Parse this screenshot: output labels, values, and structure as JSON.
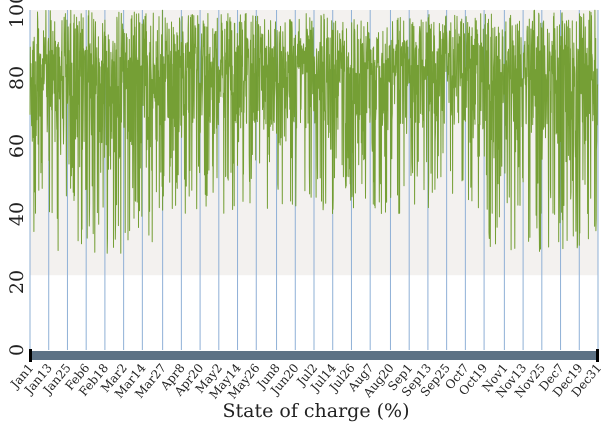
{
  "chart_data": {
    "type": "line",
    "title": "",
    "xlabel": "State of charge (%)",
    "ylabel": "",
    "ylim": [
      0,
      100
    ],
    "yticks": [
      0,
      20,
      40,
      60,
      80,
      100
    ],
    "xlim": [
      1,
      365
    ],
    "x_tick_labels": [
      "Jan1",
      "Jan13",
      "Jan25",
      "Feb6",
      "Feb18",
      "Mar2",
      "Mar14",
      "Mar27",
      "Apr8",
      "Apr20",
      "May2",
      "May14",
      "May26",
      "Jun8",
      "Jun20",
      "Jul2",
      "Jul14",
      "Jul26",
      "Aug7",
      "Aug20",
      "Sep1",
      "Sep13",
      "Sep25",
      "Oct7",
      "Oct19",
      "Nov1",
      "Nov13",
      "Nov25",
      "Dec7",
      "Dec19",
      "Dec31"
    ],
    "x_tick_days": [
      1,
      13,
      25,
      37,
      49,
      61,
      73,
      86,
      98,
      110,
      122,
      134,
      146,
      159,
      171,
      183,
      195,
      207,
      219,
      232,
      244,
      256,
      268,
      280,
      292,
      305,
      317,
      329,
      341,
      353,
      365
    ],
    "shaded_band": [
      22,
      100
    ],
    "grid": false,
    "legend": "none",
    "series": [
      {
        "color": "#6e9a2a",
        "seasonal_profile": [
          {
            "from_day": 1,
            "to_day": 88,
            "min": 28,
            "max": 100
          },
          {
            "from_day": 88,
            "to_day": 290,
            "min": 40,
            "max": 99
          },
          {
            "from_day": 290,
            "to_day": 365,
            "min": 28,
            "max": 100
          }
        ]
      }
    ]
  }
}
